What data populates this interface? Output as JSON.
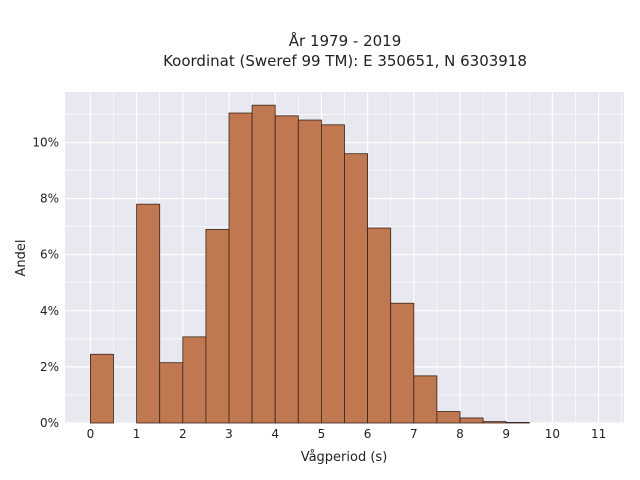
{
  "chart_data": {
    "type": "bar",
    "title_lines": [
      "År 1979 - 2019",
      "Koordinat (Sweref 99 TM): E 350651, N 6303918"
    ],
    "xlabel": "Vågperiod (s)",
    "ylabel": "Andel",
    "bin_width": 0.5,
    "bins": [
      {
        "x": 0.0,
        "value": 2.45
      },
      {
        "x": 0.5,
        "value": 0.0
      },
      {
        "x": 1.0,
        "value": 7.8
      },
      {
        "x": 1.5,
        "value": 2.15
      },
      {
        "x": 2.0,
        "value": 3.07
      },
      {
        "x": 2.5,
        "value": 6.9
      },
      {
        "x": 3.0,
        "value": 11.05
      },
      {
        "x": 3.5,
        "value": 11.33
      },
      {
        "x": 4.0,
        "value": 10.95
      },
      {
        "x": 4.5,
        "value": 10.8
      },
      {
        "x": 5.0,
        "value": 10.63
      },
      {
        "x": 5.5,
        "value": 9.6
      },
      {
        "x": 6.0,
        "value": 6.95
      },
      {
        "x": 6.5,
        "value": 4.27
      },
      {
        "x": 7.0,
        "value": 1.68
      },
      {
        "x": 7.5,
        "value": 0.41
      },
      {
        "x": 8.0,
        "value": 0.18
      },
      {
        "x": 8.5,
        "value": 0.05
      },
      {
        "x": 9.0,
        "value": 0.02
      }
    ],
    "x_ticks": [
      "0",
      "1",
      "2",
      "3",
      "4",
      "5",
      "6",
      "7",
      "8",
      "9",
      "10",
      "11"
    ],
    "y_ticks": [
      "0%",
      "2%",
      "4%",
      "6%",
      "8%",
      "10%"
    ],
    "xlim": [
      -0.55,
      11.55
    ],
    "ylim": [
      0,
      11.8
    ],
    "grid": true,
    "bar_color": "#c07850",
    "bar_edge_color": "#3a2418",
    "plot_background": "#e8e8f0",
    "grid_color": "#ffffff"
  }
}
